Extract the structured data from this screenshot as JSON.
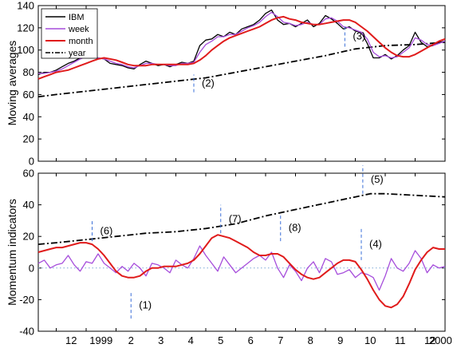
{
  "chart_data": [
    {
      "type": "line",
      "ylabel": "Moving averages",
      "ylim": [
        0,
        140
      ],
      "yticks": [
        "0",
        "20",
        "40",
        "60",
        "80",
        "100",
        "120",
        "140"
      ],
      "x_axis_unit": "months starting Dec 1998",
      "xlim": [
        -0.6,
        13.0
      ],
      "x_tick_labels": [
        "12",
        "1999",
        "2",
        "3",
        "4",
        "5",
        "6",
        "7",
        "8",
        "9",
        "10",
        "11",
        "12",
        "2000"
      ],
      "legend": {
        "position": "top-left",
        "entries": [
          "IBM",
          "week",
          "month",
          "year"
        ],
        "colors": [
          "#000000",
          "#a64ddb",
          "#e01b1b",
          "#000000"
        ],
        "styles": [
          "solid",
          "solid",
          "solid",
          "dash-dot"
        ]
      },
      "series": [
        {
          "name": "IBM",
          "x": [
            -0.6,
            -0.4,
            -0.2,
            0.0,
            0.2,
            0.4,
            0.6,
            0.8,
            1.0,
            1.2,
            1.4,
            1.6,
            1.8,
            2.0,
            2.2,
            2.4,
            2.6,
            2.8,
            3.0,
            3.2,
            3.4,
            3.6,
            3.8,
            4.0,
            4.2,
            4.4,
            4.6,
            4.8,
            5.0,
            5.2,
            5.4,
            5.6,
            5.8,
            6.0,
            6.2,
            6.4,
            6.6,
            6.8,
            7.0,
            7.2,
            7.4,
            7.6,
            7.8,
            8.0,
            8.2,
            8.4,
            8.6,
            8.8,
            9.0,
            9.2,
            9.4,
            9.6,
            9.8,
            10.0,
            10.2,
            10.4,
            10.6,
            10.8,
            11.0,
            11.2,
            11.4,
            11.6,
            11.8,
            12.0,
            12.2,
            12.4,
            12.6,
            12.8,
            13.0
          ],
          "y": [
            78,
            80,
            80,
            82,
            85,
            88,
            90,
            93,
            95,
            94,
            93,
            92,
            88,
            87,
            86,
            84,
            83,
            87,
            90,
            88,
            86,
            87,
            85,
            87,
            89,
            88,
            90,
            104,
            109,
            110,
            114,
            112,
            116,
            114,
            119,
            121,
            123,
            127,
            133,
            136,
            127,
            123,
            124,
            121,
            124,
            127,
            121,
            124,
            131,
            128,
            124,
            119,
            121,
            117,
            116,
            106,
            93,
            93,
            96,
            92,
            95,
            100,
            104,
            116,
            107,
            103,
            104,
            107,
            108
          ]
        },
        {
          "name": "week",
          "x": [
            -0.6,
            -0.4,
            -0.2,
            0.0,
            0.2,
            0.4,
            0.6,
            0.8,
            1.0,
            1.2,
            1.4,
            1.6,
            1.8,
            2.0,
            2.2,
            2.4,
            2.6,
            2.8,
            3.0,
            3.2,
            3.4,
            3.6,
            3.8,
            4.0,
            4.2,
            4.4,
            4.6,
            4.8,
            5.0,
            5.2,
            5.4,
            5.6,
            5.8,
            6.0,
            6.2,
            6.4,
            6.6,
            6.8,
            7.0,
            7.2,
            7.4,
            7.6,
            7.8,
            8.0,
            8.2,
            8.4,
            8.6,
            8.8,
            9.0,
            9.2,
            9.4,
            9.6,
            9.8,
            10.0,
            10.2,
            10.4,
            10.6,
            10.8,
            11.0,
            11.2,
            11.4,
            11.6,
            11.8,
            12.0,
            12.2,
            12.4,
            12.6,
            12.8,
            13.0
          ],
          "y": [
            79,
            79,
            80,
            81,
            83,
            86,
            89,
            92,
            94,
            94,
            93,
            92,
            90,
            88,
            87,
            85,
            84,
            86,
            88,
            88,
            87,
            87,
            86,
            86,
            88,
            88,
            89,
            98,
            105,
            108,
            112,
            112,
            114,
            114,
            117,
            120,
            122,
            125,
            130,
            134,
            130,
            125,
            124,
            122,
            123,
            125,
            123,
            123,
            128,
            129,
            126,
            121,
            120,
            118,
            116,
            110,
            98,
            94,
            95,
            93,
            94,
            98,
            102,
            111,
            109,
            105,
            104,
            106,
            108
          ]
        },
        {
          "name": "month",
          "x": [
            -0.6,
            -0.4,
            -0.2,
            0.0,
            0.2,
            0.4,
            0.6,
            0.8,
            1.0,
            1.2,
            1.4,
            1.6,
            1.8,
            2.0,
            2.2,
            2.4,
            2.6,
            2.8,
            3.0,
            3.2,
            3.4,
            3.6,
            3.8,
            4.0,
            4.2,
            4.4,
            4.6,
            4.8,
            5.0,
            5.2,
            5.4,
            5.6,
            5.8,
            6.0,
            6.2,
            6.4,
            6.6,
            6.8,
            7.0,
            7.2,
            7.4,
            7.6,
            7.8,
            8.0,
            8.2,
            8.4,
            8.6,
            8.8,
            9.0,
            9.2,
            9.4,
            9.6,
            9.8,
            10.0,
            10.2,
            10.4,
            10.6,
            10.8,
            11.0,
            11.2,
            11.4,
            11.6,
            11.8,
            12.0,
            12.2,
            12.4,
            12.6,
            12.8,
            13.0
          ],
          "y": [
            74,
            76,
            78,
            80,
            81,
            82,
            84,
            86,
            88,
            90,
            92,
            93,
            92,
            91,
            89,
            87,
            86,
            86,
            86,
            87,
            87,
            87,
            87,
            87,
            87,
            87,
            88,
            91,
            95,
            100,
            104,
            108,
            111,
            113,
            115,
            117,
            119,
            121,
            124,
            127,
            129,
            130,
            128,
            127,
            125,
            124,
            123,
            123,
            124,
            125,
            126,
            127,
            127,
            125,
            121,
            117,
            112,
            107,
            102,
            98,
            95,
            94,
            94,
            96,
            99,
            102,
            105,
            108,
            110
          ]
        },
        {
          "name": "year",
          "x": [
            -0.6,
            0.0,
            1.0,
            2.0,
            3.0,
            4.0,
            5.0,
            6.0,
            7.0,
            8.0,
            9.0,
            10.0,
            11.0,
            12.0,
            13.0
          ],
          "y": [
            58,
            60,
            63,
            66,
            69,
            72,
            75,
            80,
            85,
            90,
            95,
            101,
            104,
            105,
            107
          ]
        }
      ]
    },
    {
      "type": "line",
      "ylabel": "Momentum indicators",
      "ylim": [
        -40,
        60
      ],
      "yticks": [
        "-40",
        "-20",
        "0",
        "20",
        "40",
        "60"
      ],
      "x_axis_unit": "months starting Dec 1998",
      "xlim": [
        -0.6,
        13.0
      ],
      "zero_line": "dotted",
      "series": [
        {
          "name": "week",
          "x": [
            -0.6,
            -0.4,
            -0.2,
            0.0,
            0.2,
            0.4,
            0.6,
            0.8,
            1.0,
            1.2,
            1.4,
            1.6,
            1.8,
            2.0,
            2.2,
            2.4,
            2.6,
            2.8,
            3.0,
            3.2,
            3.4,
            3.6,
            3.8,
            4.0,
            4.2,
            4.4,
            4.6,
            4.8,
            5.0,
            5.2,
            5.4,
            5.6,
            5.8,
            6.0,
            6.2,
            6.4,
            6.6,
            6.8,
            7.0,
            7.2,
            7.4,
            7.6,
            7.8,
            8.0,
            8.2,
            8.4,
            8.6,
            8.8,
            9.0,
            9.2,
            9.4,
            9.6,
            9.8,
            10.0,
            10.2,
            10.4,
            10.6,
            10.8,
            11.0,
            11.2,
            11.4,
            11.6,
            11.8,
            12.0,
            12.2,
            12.4,
            12.6,
            12.8,
            13.0
          ],
          "y": [
            3,
            5,
            0,
            2,
            3,
            8,
            2,
            -2,
            4,
            3,
            9,
            3,
            0,
            -3,
            1,
            -2,
            3,
            0,
            -5,
            3,
            2,
            0,
            -3,
            5,
            2,
            0,
            6,
            14,
            8,
            3,
            -2,
            7,
            2,
            -3,
            0,
            3,
            6,
            8,
            5,
            10,
            0,
            -6,
            2,
            -2,
            -8,
            0,
            4,
            -3,
            6,
            4,
            -4,
            -3,
            -1,
            -6,
            -3,
            -4,
            -6,
            -14,
            -5,
            6,
            0,
            -2,
            3,
            11,
            6,
            -3,
            2,
            0,
            1
          ]
        },
        {
          "name": "month",
          "x": [
            -0.6,
            -0.4,
            -0.2,
            0.0,
            0.2,
            0.4,
            0.6,
            0.8,
            1.0,
            1.2,
            1.4,
            1.6,
            1.8,
            2.0,
            2.2,
            2.4,
            2.6,
            2.8,
            3.0,
            3.2,
            3.4,
            3.6,
            3.8,
            4.0,
            4.2,
            4.4,
            4.6,
            4.8,
            5.0,
            5.2,
            5.4,
            5.6,
            5.8,
            6.0,
            6.2,
            6.4,
            6.6,
            6.8,
            7.0,
            7.2,
            7.4,
            7.6,
            7.8,
            8.0,
            8.2,
            8.4,
            8.6,
            8.8,
            9.0,
            9.2,
            9.4,
            9.6,
            9.8,
            10.0,
            10.2,
            10.4,
            10.6,
            10.8,
            11.0,
            11.2,
            11.4,
            11.6,
            11.8,
            12.0,
            12.2,
            12.4,
            12.6,
            12.8,
            13.0
          ],
          "y": [
            10,
            11,
            12,
            13,
            13,
            14,
            15,
            16,
            16,
            15,
            12,
            8,
            3,
            -2,
            -5,
            -6,
            -6,
            -5,
            -2,
            0,
            0,
            1,
            1,
            1,
            2,
            3,
            5,
            9,
            14,
            19,
            21,
            20,
            19,
            17,
            15,
            13,
            10,
            8,
            8,
            9,
            9,
            7,
            3,
            -1,
            -4,
            -6,
            -7,
            -6,
            -3,
            0,
            3,
            5,
            5,
            4,
            -1,
            -7,
            -14,
            -20,
            -24,
            -25,
            -23,
            -18,
            -10,
            -1,
            5,
            10,
            13,
            12,
            12
          ]
        },
        {
          "name": "year",
          "x": [
            -0.6,
            0.0,
            1.0,
            2.0,
            3.0,
            4.0,
            5.0,
            6.0,
            7.0,
            8.0,
            9.0,
            10.0,
            10.5,
            11.0,
            12.0,
            13.0
          ],
          "y": [
            15,
            16,
            18,
            20,
            22,
            23,
            25,
            28,
            33,
            37,
            41,
            45,
            47,
            47,
            46,
            45
          ]
        }
      ],
      "annotations": [
        "(1)",
        "(6)",
        "(7)",
        "(8)",
        "(4)"
      ]
    }
  ],
  "annotations": [
    {
      "label": "(1)",
      "x": 2.5,
      "from": -32,
      "to": -15,
      "panel": 1
    },
    {
      "label": "(2)",
      "x": 4.6,
      "from": 62,
      "to": 78,
      "panel": 0
    },
    {
      "label": "(3)",
      "x": 9.65,
      "from": 103,
      "to": 122,
      "panel": 0
    },
    {
      "label": "(4)",
      "x": 10.2,
      "from": 5,
      "to": 25,
      "panel": 1
    },
    {
      "label": "(5)",
      "x": 10.25,
      "from": 47,
      "to": 65,
      "panel": 1
    },
    {
      "label": "(6)",
      "x": 1.2,
      "from": 17,
      "to": 30,
      "panel": 1
    },
    {
      "label": "(7)",
      "x": 5.5,
      "from": 22,
      "to": 40,
      "panel": 1
    },
    {
      "label": "(8)",
      "x": 7.5,
      "from": 17,
      "to": 34,
      "panel": 1
    }
  ]
}
